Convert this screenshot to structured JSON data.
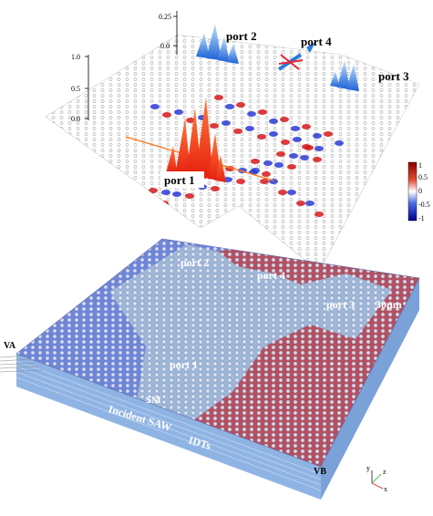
{
  "top_plot": {
    "ports": [
      "port 1",
      "port 2",
      "port 3",
      "port 4"
    ],
    "left_axis_ticks": [
      "1.0",
      "0.5",
      "0.0"
    ],
    "back_axis_ticks": [
      "0.25",
      "0.0"
    ],
    "colorbar_ticks": [
      "1",
      "0.5",
      "0",
      "-0.5",
      "-1"
    ],
    "colors": {
      "positive": "#d7191c",
      "negative": "#2c3bd6",
      "peak": "#ff3b1f",
      "blue_peak": "#2a7bdc"
    }
  },
  "device": {
    "port_labels": [
      "port 2",
      "port 4",
      "port 3",
      "port 1"
    ],
    "scale_bar": "30μm",
    "sm_label": "SM",
    "incident_label": "Incident SAW",
    "idt_label": "IDTs",
    "va_label": "VA",
    "vb_label": "VB",
    "colors": {
      "substrate_blue": "#6f86d8",
      "red_region": "#b5505f",
      "light_channel": "#9fb7d6",
      "side": "#8fb4e4"
    }
  },
  "axes_triad": {
    "x": "x",
    "y": "y",
    "z": "z"
  }
}
